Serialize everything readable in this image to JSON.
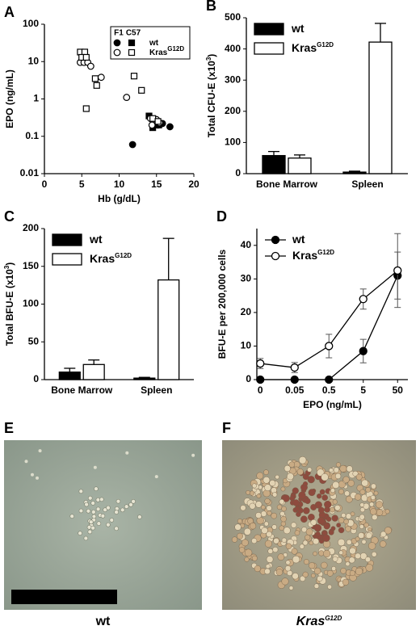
{
  "chart_data": [
    {
      "type": "scatter",
      "panel_label": "A",
      "ylabel": "EPO (ng/mL)",
      "xlabel": "Hb (g/dL)",
      "xlim": [
        0,
        20
      ],
      "xticks": [
        0,
        5,
        10,
        15,
        20
      ],
      "ylim": [
        0.01,
        100
      ],
      "yticks": [
        0.01,
        0.1,
        1,
        10,
        100
      ],
      "ylog": true,
      "legend": {
        "columns": [
          {
            "label": "F1",
            "marker": "circle"
          },
          {
            "label": "C57",
            "marker": "square"
          }
        ],
        "rows": [
          {
            "name": "wt",
            "fill": "#000000"
          },
          {
            "name": "Kras",
            "name_superscript": "G12D",
            "fill": "#ffffff"
          }
        ]
      },
      "series": [
        {
          "column": 0,
          "row": 0,
          "x": [
            11.8,
            14.8,
            15.2,
            15.8,
            16.8
          ],
          "y": [
            0.06,
            0.22,
            0.2,
            0.22,
            0.18
          ]
        },
        {
          "column": 1,
          "row": 0,
          "x": [
            14,
            14.5,
            15.3
          ],
          "y": [
            0.35,
            0.17,
            0.2
          ]
        },
        {
          "column": 0,
          "row": 1,
          "x": [
            4.8,
            5.3,
            5.8,
            6.2,
            7.6,
            11,
            14.2,
            14.6,
            15,
            15.4,
            14.4
          ],
          "y": [
            9.5,
            9.5,
            9.5,
            7.5,
            3.8,
            1.1,
            0.3,
            0.25,
            0.28,
            0.23,
            0.2
          ]
        },
        {
          "column": 1,
          "row": 1,
          "x": [
            4.8,
            5.4,
            5,
            5.6,
            6.8,
            7,
            5.6,
            12,
            13,
            14.5,
            15.2
          ],
          "y": [
            18,
            18,
            13,
            13,
            3.5,
            2.3,
            0.55,
            4.1,
            1.7,
            0.3,
            0.25
          ]
        }
      ]
    },
    {
      "type": "bar",
      "panel_label": "B",
      "ylabel": {
        "text": "Total CFU-E (x10",
        "superscript": "3",
        "suffix": ")"
      },
      "categories": [
        "Bone Marrow",
        "Spleen"
      ],
      "ylim": [
        0,
        500
      ],
      "yticks": [
        0,
        100,
        200,
        300,
        400,
        500
      ],
      "series": [
        {
          "name": "wt",
          "color": "#000000",
          "values": [
            58,
            5
          ],
          "errors": [
            13,
            3
          ]
        },
        {
          "name": "Kras",
          "name_superscript": "G12D",
          "color": "#ffffff",
          "values": [
            50,
            422
          ],
          "errors": [
            10,
            60
          ]
        }
      ]
    },
    {
      "type": "bar",
      "panel_label": "C",
      "ylabel": {
        "text": "Total BFU-E (x10",
        "superscript": "3",
        "suffix": ")"
      },
      "categories": [
        "Bone Marrow",
        "Spleen"
      ],
      "ylim": [
        0,
        200
      ],
      "yticks": [
        0,
        50,
        100,
        150,
        200
      ],
      "series": [
        {
          "name": "wt",
          "color": "#000000",
          "values": [
            10,
            2
          ],
          "errors": [
            5,
            1
          ]
        },
        {
          "name": "Kras",
          "name_superscript": "G12D",
          "color": "#ffffff",
          "values": [
            20,
            132
          ],
          "errors": [
            6,
            55
          ]
        }
      ]
    },
    {
      "type": "line",
      "panel_label": "D",
      "ylabel": "BFU-E per 200,000 cells",
      "xlabel": "EPO (ng/mL)",
      "categories": [
        "0",
        "0.05",
        "0.5",
        "5",
        "50"
      ],
      "ylim": [
        0,
        45
      ],
      "yticks": [
        0,
        10,
        20,
        30,
        40
      ],
      "series": [
        {
          "name": "wt",
          "color": "#000000",
          "values": [
            0,
            0,
            0,
            8.5,
            31
          ],
          "errors": [
            0,
            0,
            0,
            3.5,
            7
          ]
        },
        {
          "name": "Kras",
          "name_superscript": "G12D",
          "color": "#ffffff",
          "values": [
            4.8,
            3.6,
            10,
            24,
            32.5
          ],
          "errors": [
            1.5,
            1.5,
            3.5,
            3,
            11
          ]
        }
      ]
    }
  ],
  "images": [
    {
      "panel_label": "E",
      "caption": "wt"
    },
    {
      "panel_label": "F",
      "caption": "Kras",
      "caption_superscript": "G12D"
    }
  ]
}
